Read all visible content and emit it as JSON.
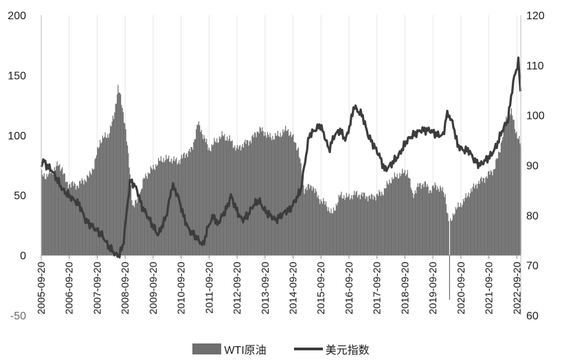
{
  "chart_data": {
    "type": "area",
    "title": "",
    "x_ticks": [
      "2005-09-20",
      "2006-09-20",
      "2007-09-20",
      "2008-09-20",
      "2009-09-20",
      "2010-09-20",
      "2011-09-20",
      "2012-09-20",
      "2013-09-20",
      "2014-09-20",
      "2015-09-20",
      "2016-09-20",
      "2017-09-20",
      "2018-09-20",
      "2019-09-20",
      "2020-09-20",
      "2021-09-20",
      "2022-09-20"
    ],
    "y_left": {
      "ticks": [
        200,
        150,
        100,
        50,
        0,
        -50
      ],
      "ylim": [
        -50,
        200
      ]
    },
    "y_right": {
      "ticks": [
        120,
        110,
        100,
        90,
        80,
        70,
        60
      ],
      "ylim": [
        60,
        120
      ]
    },
    "legend": {
      "placement": "bottom-center"
    },
    "colors": {
      "wti": "#6f6f6f",
      "dxy": "#3c3c3c",
      "axis": "#bbbbbb"
    },
    "series": [
      {
        "name": "WTI原油",
        "type": "area",
        "axis": "left",
        "x": [
          2005.72,
          2005.9,
          2006.1,
          2006.3,
          2006.45,
          2006.6,
          2006.8,
          2007.0,
          2007.2,
          2007.4,
          2007.6,
          2007.8,
          2007.95,
          2008.1,
          2008.3,
          2008.45,
          2008.55,
          2008.7,
          2008.85,
          2008.98,
          2009.1,
          2009.2,
          2009.4,
          2009.6,
          2009.8,
          2010.0,
          2010.3,
          2010.6,
          2010.9,
          2011.1,
          2011.3,
          2011.5,
          2011.7,
          2011.9,
          2012.2,
          2012.5,
          2012.7,
          2012.9,
          2013.2,
          2013.5,
          2013.7,
          2013.9,
          2014.2,
          2014.5,
          2014.7,
          2014.9,
          2015.1,
          2015.4,
          2015.6,
          2015.9,
          2016.1,
          2016.4,
          2016.7,
          2016.9,
          2017.2,
          2017.5,
          2017.7,
          2017.9,
          2018.2,
          2018.5,
          2018.8,
          2018.98,
          2019.2,
          2019.4,
          2019.6,
          2019.8,
          2020.0,
          2020.15,
          2020.25,
          2020.3,
          2020.35,
          2020.45,
          2020.6,
          2020.8,
          2021.0,
          2021.3,
          2021.6,
          2021.9,
          2022.1,
          2022.2,
          2022.35,
          2022.5,
          2022.65,
          2022.8,
          2022.85
        ],
        "values": [
          67,
          66,
          70,
          75,
          73,
          60,
          59,
          58,
          62,
          65,
          75,
          95,
          98,
          100,
          115,
          140,
          130,
          110,
          75,
          40,
          44,
          48,
          65,
          70,
          75,
          80,
          80,
          78,
          85,
          88,
          110,
          100,
          88,
          94,
          100,
          95,
          88,
          92,
          96,
          105,
          102,
          98,
          100,
          105,
          98,
          88,
          55,
          58,
          48,
          42,
          34,
          50,
          48,
          51,
          50,
          48,
          50,
          52,
          63,
          67,
          70,
          50,
          58,
          60,
          54,
          58,
          55,
          50,
          30,
          25,
          28,
          36,
          40,
          45,
          52,
          60,
          65,
          72,
          88,
          100,
          115,
          120,
          105,
          95,
          90
        ]
      },
      {
        "name": "美元指数",
        "type": "line",
        "axis": "right",
        "x": [
          2005.72,
          2005.8,
          2005.9,
          2006.1,
          2006.3,
          2006.5,
          2006.7,
          2006.9,
          2007.1,
          2007.3,
          2007.5,
          2007.7,
          2007.9,
          2008.1,
          2008.25,
          2008.4,
          2008.5,
          2008.65,
          2008.8,
          2008.9,
          2009.05,
          2009.15,
          2009.3,
          2009.5,
          2009.7,
          2009.9,
          2010.05,
          2010.2,
          2010.4,
          2010.6,
          2010.8,
          2011.0,
          2011.2,
          2011.35,
          2011.5,
          2011.7,
          2011.9,
          2012.0,
          2012.2,
          2012.4,
          2012.5,
          2012.7,
          2012.9,
          2013.1,
          2013.3,
          2013.5,
          2013.7,
          2013.9,
          2014.1,
          2014.3,
          2014.5,
          2014.6,
          2014.8,
          2015.0,
          2015.1,
          2015.3,
          2015.5,
          2015.7,
          2015.9,
          2016.0,
          2016.2,
          2016.4,
          2016.6,
          2016.8,
          2016.9,
          2017.0,
          2017.2,
          2017.4,
          2017.6,
          2017.8,
          2018.0,
          2018.2,
          2018.5,
          2018.8,
          2019.0,
          2019.3,
          2019.6,
          2019.9,
          2020.1,
          2020.2,
          2020.3,
          2020.45,
          2020.6,
          2020.8,
          2021.0,
          2021.2,
          2021.4,
          2021.6,
          2021.8,
          2022.0,
          2022.2,
          2022.4,
          2022.5,
          2022.6,
          2022.7,
          2022.78,
          2022.85
        ],
        "values": [
          90,
          91,
          90,
          89,
          87,
          85,
          84,
          83,
          82,
          79,
          78,
          77,
          76,
          74,
          73,
          72,
          72,
          74,
          82,
          87,
          86,
          85,
          82,
          80,
          78,
          76,
          78,
          80,
          86,
          84,
          80,
          77,
          76,
          75,
          74,
          78,
          80,
          78,
          80,
          82,
          84,
          81,
          79,
          80,
          82,
          83,
          81,
          80,
          79,
          80,
          81,
          81,
          83,
          85,
          89,
          96,
          97,
          98,
          95,
          93,
          96,
          97,
          95,
          99,
          102,
          101,
          100,
          96,
          94,
          92,
          89,
          90,
          92,
          95,
          96,
          97,
          97,
          96,
          96,
          100,
          100,
          98,
          94,
          93,
          93,
          91,
          90,
          91,
          92,
          94,
          97,
          99,
          103,
          107,
          109,
          111,
          104
        ]
      }
    ]
  }
}
